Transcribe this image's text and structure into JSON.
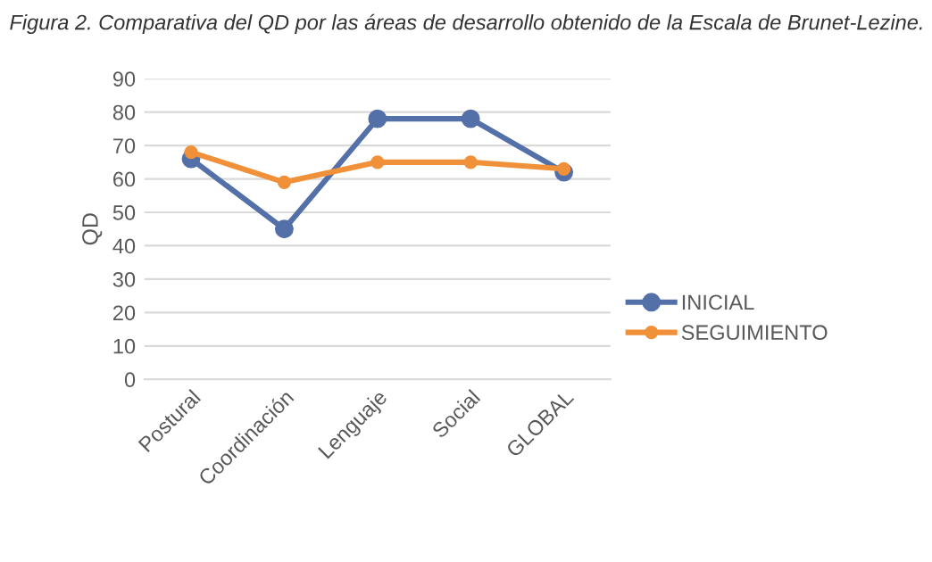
{
  "chart_data": {
    "type": "line",
    "title": "Figura 2. Comparativa del QD por las áreas de desarrollo obtenido de la Escala de Brunet-Lezine.",
    "ylabel": "QD",
    "categories": [
      "Postural",
      "Coordinación",
      "Lenguaje",
      "Social",
      "GLOBAL"
    ],
    "series": [
      {
        "name": "INICIAL",
        "color": "#5470a8",
        "values": [
          66,
          45,
          78,
          78,
          62
        ]
      },
      {
        "name": "SEGUIMIENTO",
        "color": "#f0913a",
        "values": [
          68,
          59,
          65,
          65,
          63
        ]
      }
    ],
    "ylim": [
      0,
      90
    ],
    "yticks": [
      0,
      10,
      20,
      30,
      40,
      50,
      60,
      70,
      80,
      90
    ],
    "grid": "y",
    "legend": "right",
    "marker": "circle",
    "line_style": "solid"
  }
}
